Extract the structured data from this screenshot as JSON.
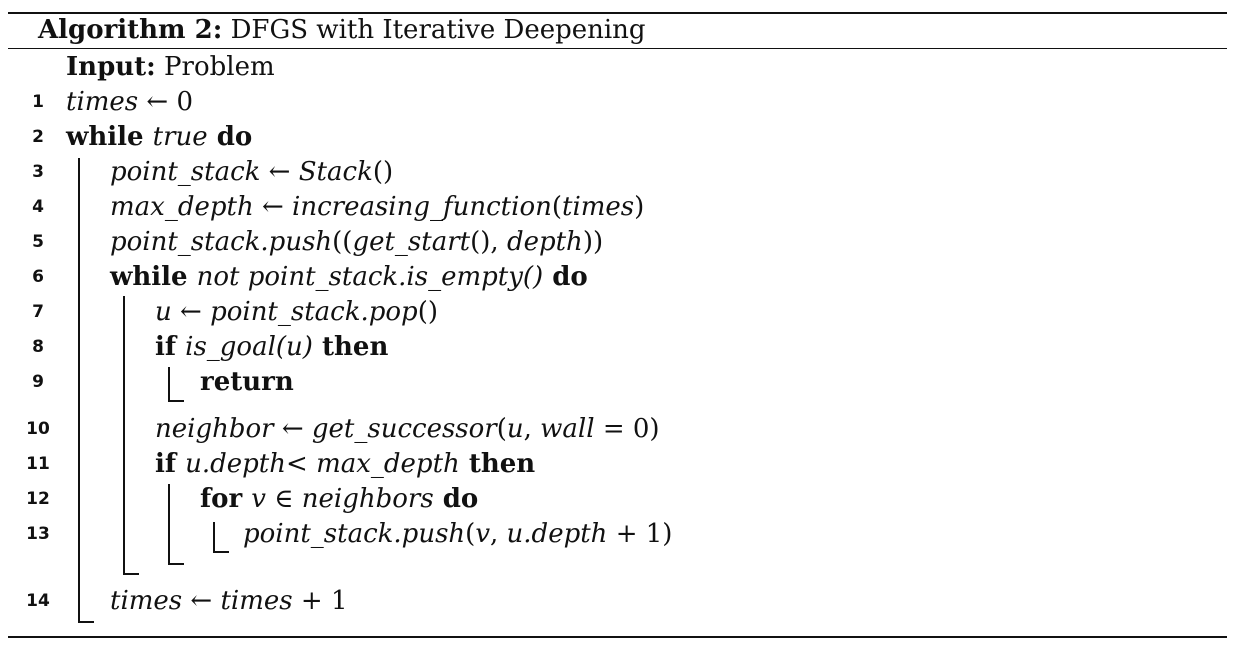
{
  "caption": {
    "label": "Algorithm 2:",
    "title": "DFGS with Iterative Deepening"
  },
  "input": {
    "label": "Input:",
    "value": "Problem"
  },
  "lines": [
    {
      "no": "1",
      "parts": [
        {
          "t": "times",
          "s": "it"
        },
        {
          "t": " ← 0",
          "s": ""
        }
      ]
    },
    {
      "no": "2",
      "parts": [
        {
          "t": "while ",
          "s": "kw"
        },
        {
          "t": "true",
          "s": "it"
        },
        {
          "t": " do",
          "s": "kw"
        }
      ]
    },
    {
      "no": "3",
      "parts": [
        {
          "t": "point_stack",
          "s": "it"
        },
        {
          "t": " ← ",
          "s": ""
        },
        {
          "t": "Stack",
          "s": "it"
        },
        {
          "t": "()",
          "s": ""
        }
      ]
    },
    {
      "no": "4",
      "parts": [
        {
          "t": "max_depth",
          "s": "it"
        },
        {
          "t": " ← ",
          "s": ""
        },
        {
          "t": "increasing_function",
          "s": "it"
        },
        {
          "t": "(",
          "s": ""
        },
        {
          "t": "times",
          "s": "it"
        },
        {
          "t": ")",
          "s": ""
        }
      ]
    },
    {
      "no": "5",
      "parts": [
        {
          "t": "point_stack.push",
          "s": "it"
        },
        {
          "t": "((",
          "s": ""
        },
        {
          "t": "get_start",
          "s": "it"
        },
        {
          "t": "(), ",
          "s": ""
        },
        {
          "t": "depth",
          "s": "it"
        },
        {
          "t": "))",
          "s": ""
        }
      ]
    },
    {
      "no": "6",
      "parts": [
        {
          "t": "while ",
          "s": "kw"
        },
        {
          "t": "not point_stack.is_empty()",
          "s": "it"
        },
        {
          "t": " do",
          "s": "kw"
        }
      ]
    },
    {
      "no": "7",
      "parts": [
        {
          "t": "u",
          "s": "it"
        },
        {
          "t": " ← ",
          "s": ""
        },
        {
          "t": "point_stack.pop",
          "s": "it"
        },
        {
          "t": "()",
          "s": ""
        }
      ]
    },
    {
      "no": "8",
      "parts": [
        {
          "t": "if ",
          "s": "kw"
        },
        {
          "t": "is_goal(u)",
          "s": "it"
        },
        {
          "t": " then",
          "s": "kw"
        }
      ]
    },
    {
      "no": "9",
      "parts": [
        {
          "t": "return",
          "s": "kw"
        }
      ]
    },
    {
      "no": "10",
      "parts": [
        {
          "t": "neighbor",
          "s": "it"
        },
        {
          "t": " ← ",
          "s": ""
        },
        {
          "t": "get_successor",
          "s": "it"
        },
        {
          "t": "(",
          "s": ""
        },
        {
          "t": "u",
          "s": "it"
        },
        {
          "t": ", ",
          "s": ""
        },
        {
          "t": "wall",
          "s": "it"
        },
        {
          "t": " = 0)",
          "s": ""
        }
      ]
    },
    {
      "no": "11",
      "parts": [
        {
          "t": "if ",
          "s": "kw"
        },
        {
          "t": "u.depth",
          "s": "it"
        },
        {
          "t": "< ",
          "s": ""
        },
        {
          "t": "max_depth",
          "s": "it"
        },
        {
          "t": " then",
          "s": "kw"
        }
      ]
    },
    {
      "no": "12",
      "parts": [
        {
          "t": "for ",
          "s": "kw"
        },
        {
          "t": "v",
          "s": "it"
        },
        {
          "t": " ∈ ",
          "s": ""
        },
        {
          "t": "neighbors",
          "s": "it"
        },
        {
          "t": " do",
          "s": "kw"
        }
      ]
    },
    {
      "no": "13",
      "parts": [
        {
          "t": "point_stack.push",
          "s": "it"
        },
        {
          "t": "(",
          "s": ""
        },
        {
          "t": "v",
          "s": "it"
        },
        {
          "t": ", ",
          "s": ""
        },
        {
          "t": "u.depth",
          "s": "it"
        },
        {
          "t": " + 1)",
          "s": ""
        }
      ]
    },
    {
      "no": "14",
      "parts": [
        {
          "t": "times",
          "s": "it"
        },
        {
          "t": " ← ",
          "s": ""
        },
        {
          "t": "times",
          "s": "it"
        },
        {
          "t": " + 1",
          "s": ""
        }
      ]
    }
  ]
}
